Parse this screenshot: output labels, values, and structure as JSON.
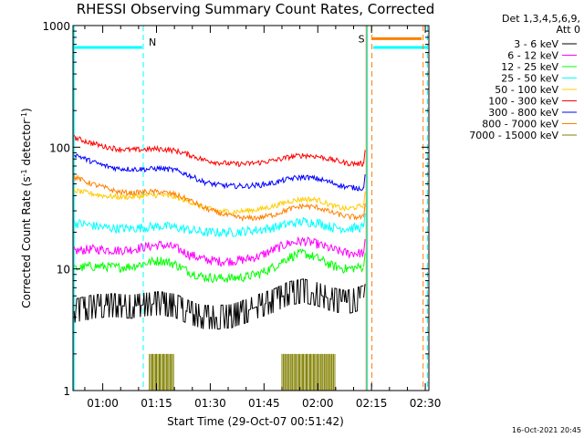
{
  "chart_data": {
    "type": "line",
    "title": "RHESSI Observing Summary Count Rates, Corrected",
    "ylabel_main": "Corrected Count Rate (s",
    "ylabel_sup1": "-1",
    "ylabel_mid": " detector",
    "ylabel_sup2": "-1",
    "ylabel_end": ")",
    "xlabel": "Start Time (29-Oct-07 00:51:42)",
    "yscale": "log",
    "ylim": [
      1,
      1000
    ],
    "xlim_minutes": [
      51.7,
      151
    ],
    "y_ticks": [
      {
        "v": 1,
        "label": "1"
      },
      {
        "v": 10,
        "label": "10"
      },
      {
        "v": 100,
        "label": "100"
      },
      {
        "v": 1000,
        "label": "1000"
      }
    ],
    "x_ticks": [
      {
        "m": 60,
        "label": "01:00"
      },
      {
        "m": 75,
        "label": "01:15"
      },
      {
        "m": 90,
        "label": "01:30"
      },
      {
        "m": 105,
        "label": "01:45"
      },
      {
        "m": 120,
        "label": "02:00"
      },
      {
        "m": 135,
        "label": "02:15"
      },
      {
        "m": 150,
        "label": "02:30"
      }
    ],
    "legend_header": [
      "Det 1,3,4,5,6,9,",
      "Att 0"
    ],
    "series": [
      {
        "name": "3 - 6 keV",
        "color": "#000000",
        "x": [
          52,
          56,
          60,
          64,
          68,
          72,
          76,
          80,
          84,
          88,
          92,
          96,
          100,
          104,
          108,
          112,
          116,
          120,
          124,
          128,
          132.5
        ],
        "values": [
          4.5,
          4.8,
          5,
          5,
          4.9,
          5.1,
          5.2,
          5,
          4.4,
          4,
          4,
          4.1,
          4.5,
          5,
          5.5,
          6.3,
          6.6,
          6.2,
          5.6,
          5.3,
          5.8
        ]
      },
      {
        "name": "6 - 12 keV",
        "color": "#ff00ff",
        "x": [
          52,
          56,
          60,
          64,
          68,
          72,
          76,
          80,
          84,
          88,
          92,
          96,
          100,
          104,
          108,
          112,
          116,
          120,
          124,
          128,
          132.5
        ],
        "values": [
          14,
          14.5,
          14.5,
          14.2,
          14.5,
          15.2,
          15.8,
          15,
          13.2,
          12,
          11.6,
          11.6,
          12,
          12.8,
          14.5,
          16.3,
          17,
          16,
          14.5,
          13.5,
          13.5
        ]
      },
      {
        "name": "12 - 25 keV",
        "color": "#00ff00",
        "x": [
          52,
          56,
          60,
          64,
          68,
          72,
          76,
          80,
          84,
          88,
          92,
          96,
          100,
          104,
          108,
          112,
          116,
          120,
          124,
          128,
          132.5
        ],
        "values": [
          10,
          10.5,
          10.5,
          10.3,
          10.5,
          11.2,
          11.8,
          11,
          9.5,
          8.6,
          8.4,
          8.4,
          8.6,
          9.2,
          10.5,
          12.5,
          13.5,
          12.2,
          10.6,
          10,
          10.4
        ]
      },
      {
        "name": "25 - 50 keV",
        "color": "#00ffff",
        "x": [
          52,
          56,
          60,
          64,
          68,
          72,
          76,
          80,
          84,
          88,
          92,
          96,
          100,
          104,
          108,
          112,
          116,
          120,
          124,
          128,
          132.5
        ],
        "values": [
          24,
          23,
          22,
          21.5,
          21.5,
          22,
          22.5,
          22,
          21,
          20,
          20,
          20,
          20.5,
          21,
          22,
          23.5,
          24.5,
          24,
          22,
          21.5,
          22
        ]
      },
      {
        "name": "50 - 100 keV",
        "color": "#ffcc00",
        "x": [
          52,
          56,
          60,
          64,
          68,
          72,
          76,
          80,
          84,
          88,
          92,
          96,
          100,
          104,
          108,
          112,
          116,
          120,
          124,
          128,
          132.5
        ],
        "values": [
          44,
          42,
          40,
          39,
          39,
          40,
          40.5,
          39,
          36,
          32,
          30,
          29.5,
          30,
          31,
          33,
          36,
          37.5,
          37,
          33,
          31,
          33
        ]
      },
      {
        "name": "100 - 300 keV",
        "color": "#ff0000",
        "x": [
          52,
          56,
          60,
          64,
          68,
          72,
          76,
          80,
          84,
          88,
          92,
          96,
          100,
          104,
          108,
          112,
          116,
          120,
          124,
          128,
          132.5
        ],
        "values": [
          120,
          110,
          102,
          97,
          95,
          96,
          97,
          94,
          87,
          79,
          75,
          73,
          73,
          75,
          78,
          83,
          86,
          84,
          79,
          74,
          73
        ]
      },
      {
        "name": "300 - 800 keV",
        "color": "#0000ff",
        "x": [
          52,
          56,
          60,
          64,
          68,
          72,
          76,
          80,
          84,
          88,
          92,
          96,
          100,
          104,
          108,
          112,
          116,
          120,
          124,
          128,
          132.5
        ],
        "values": [
          88,
          78,
          71,
          67,
          66,
          66,
          67,
          65,
          59,
          52,
          49,
          48,
          48,
          49,
          51,
          55,
          57,
          55,
          51,
          47,
          46
        ]
      },
      {
        "name": "800 - 7000 keV",
        "color": "#ff8000",
        "x": [
          52,
          56,
          60,
          64,
          68,
          72,
          76,
          80,
          84,
          88,
          92,
          96,
          100,
          104,
          108,
          112,
          116,
          120,
          124,
          128,
          132.5
        ],
        "values": [
          57,
          51,
          47,
          43,
          42,
          43,
          43,
          41,
          37,
          32,
          29,
          27,
          26,
          26.5,
          28,
          31,
          33,
          32,
          29,
          27,
          26.5
        ]
      },
      {
        "name": "7000 - 15000 keV",
        "color": "#808000",
        "x": [
          73,
          74,
          75,
          76,
          77,
          78,
          79,
          110,
          111,
          112,
          113,
          114,
          115,
          116,
          117,
          118,
          119,
          120,
          121,
          122,
          123,
          124
        ],
        "values": [
          2,
          2,
          2,
          2,
          2,
          2,
          2,
          2,
          2,
          2,
          2,
          2,
          2,
          2,
          2,
          2,
          2,
          2,
          2,
          2,
          2,
          2
        ]
      }
    ],
    "annotations": {
      "night_label": "N",
      "saa_label": "S",
      "night_color": "#00ffff",
      "saa_color": "#ff8000",
      "night_bar_minutes": [
        52,
        71
      ],
      "night_bar_minutes_2": [
        135.5,
        150.5
      ],
      "saa_bar_minutes": [
        135,
        149
      ],
      "night_lines_minutes": [
        71.3,
        150.6
      ],
      "saa_lines_minutes": [
        135.1,
        149.4
      ],
      "solid_cyan_line_minutes": 133.8,
      "solid_orange_line_minutes": 133.5,
      "bar_level": 660,
      "saa_bar_level": 780
    }
  },
  "footer": "16-Oct-2021 20:45"
}
